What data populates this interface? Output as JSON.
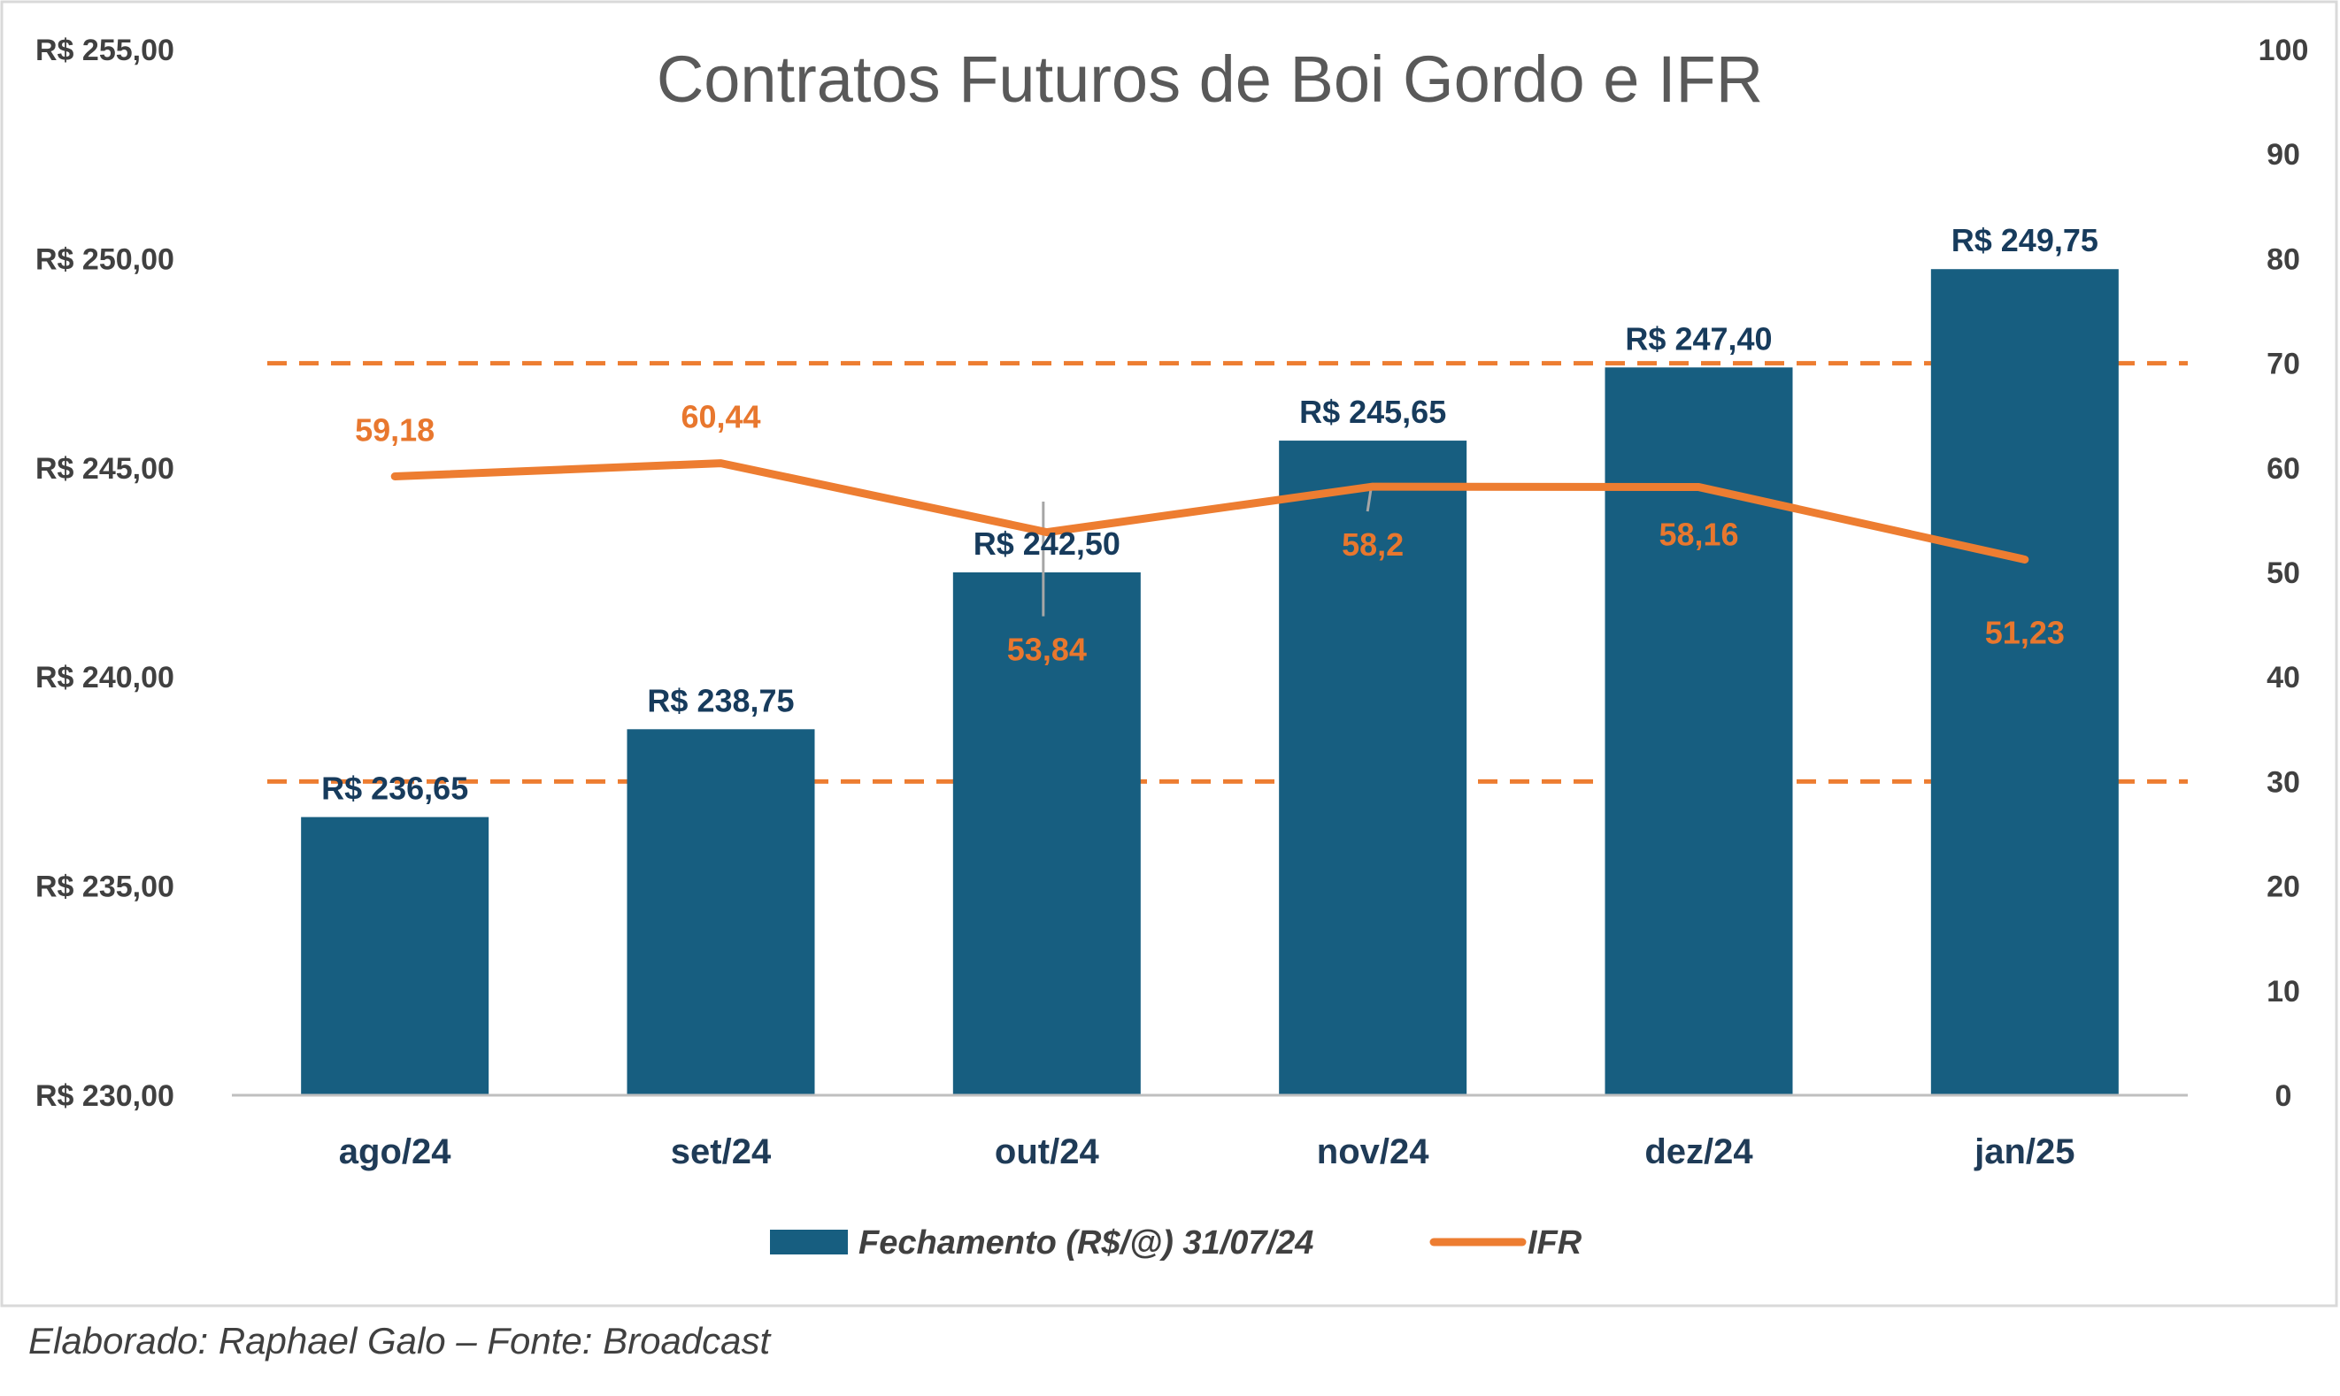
{
  "footer": "Elaborado: Raphael Galo – Fonte: Broadcast",
  "colors": {
    "bar": "#175e80",
    "line": "#ed7d31",
    "dashed": "#ed7d31",
    "axis": "#bfbfbf"
  },
  "chart_data": {
    "type": "bar",
    "title": "Contratos Futuros de Boi Gordo e IFR",
    "categories": [
      "ago/24",
      "set/24",
      "out/24",
      "nov/24",
      "dez/24",
      "jan/25"
    ],
    "series": [
      {
        "name": "Fechamento (R$/@) 31/07/24",
        "type": "bar",
        "axis": "left",
        "values": [
          236.65,
          238.75,
          242.5,
          245.65,
          247.4,
          249.75
        ],
        "labels": [
          "R$ 236,65",
          "R$ 238,75",
          "R$ 242,50",
          "R$ 245,65",
          "R$ 247,40",
          "R$ 249,75"
        ]
      },
      {
        "name": "IFR",
        "type": "line",
        "axis": "right",
        "values": [
          59.18,
          60.44,
          53.84,
          58.2,
          58.16,
          51.23
        ],
        "labels": [
          "59,18",
          "60,44",
          "53,84",
          "58,2",
          "58,16",
          "51,23"
        ]
      }
    ],
    "reference_lines": [
      {
        "axis": "right",
        "value": 70,
        "style": "dashed"
      },
      {
        "axis": "right",
        "value": 30,
        "style": "dashed"
      }
    ],
    "y_left": {
      "ylim": [
        230,
        255
      ],
      "ticks": [
        230,
        235,
        240,
        245,
        250,
        255
      ],
      "tick_labels": [
        "R$ 230,00",
        "R$ 235,00",
        "R$ 240,00",
        "R$ 245,00",
        "R$ 250,00",
        "R$ 255,00"
      ]
    },
    "y_right": {
      "ylim": [
        0,
        100
      ],
      "ticks": [
        0,
        10,
        20,
        30,
        40,
        50,
        60,
        70,
        80,
        90,
        100
      ],
      "tick_labels": [
        "0",
        "10",
        "20",
        "30",
        "40",
        "50",
        "60",
        "70",
        "80",
        "90",
        "100"
      ]
    },
    "grid": false,
    "legend_position": "bottom"
  }
}
